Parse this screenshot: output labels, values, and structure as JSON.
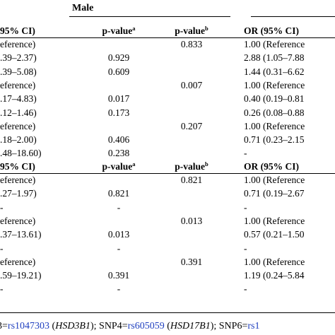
{
  "group_header": "Male",
  "sections": [
    {
      "header": {
        "or": "95% CI)",
        "p_a": "p-value",
        "p_a_sup": "a",
        "p_b": "p-value",
        "p_b_sup": "b",
        "or2": "OR (95% CI)"
      },
      "rows": [
        {
          "or": "eference)",
          "p_a": "",
          "p_b": "0.833",
          "or2": "1.00 (Reference"
        },
        {
          "or": ".39–2.37)",
          "p_a": "0.929",
          "p_b": "",
          "or2": "2.88 (1.05–7.88"
        },
        {
          "or": ".39–5.08)",
          "p_a": "0.609",
          "p_b": "",
          "or2": "1.44 (0.31–6.62"
        },
        {
          "or": "eference)",
          "p_a": "",
          "p_b": "0.007",
          "or2": "1.00 (Reference"
        },
        {
          "or": ".17–4.83)",
          "p_a": "0.017",
          "p_b": "",
          "or2": "0.40 (0.19–0.81"
        },
        {
          "or": ".12–1.46)",
          "p_a": "0.173",
          "p_b": "",
          "or2": "0.26 (0.08–0.88"
        },
        {
          "or": "eference)",
          "p_a": "",
          "p_b": "0.207",
          "or2": "1.00 (Reference"
        },
        {
          "or": ".18–2.00)",
          "p_a": "0.406",
          "p_b": "",
          "or2": "0.71 (0.23–2.15"
        },
        {
          "or": ".48–18.60)",
          "p_a": "0.238",
          "p_b": "",
          "or2": "-"
        }
      ]
    },
    {
      "header": {
        "or": "95% CI)",
        "p_a": "p-value",
        "p_a_sup": "a",
        "p_b": "p-value",
        "p_b_sup": "b",
        "or2": "OR (95% CI)"
      },
      "rows": [
        {
          "or": "eference)",
          "p_a": "",
          "p_b": "0.821",
          "or2": "1.00 (Reference"
        },
        {
          "or": ".27–1.97)",
          "p_a": "0.821",
          "p_b": "",
          "or2": "0.71 (0.19–2.67"
        },
        {
          "or": "-",
          "p_a": "-",
          "p_b": "",
          "or2": "-"
        },
        {
          "or": "eference)",
          "p_a": "",
          "p_b": "0.013",
          "or2": "1.00 (Reference"
        },
        {
          "or": ".37–13.61)",
          "p_a": "0.013",
          "p_b": "",
          "or2": "0.57 (0.21–1.50"
        },
        {
          "or": "-",
          "p_a": "-",
          "p_b": "",
          "or2": "-"
        },
        {
          "or": "eference)",
          "p_a": "",
          "p_b": "0.391",
          "or2": "1.00 (Reference"
        },
        {
          "or": ".59–19.21)",
          "p_a": "0.391",
          "p_b": "",
          "or2": "1.19 (0.24–5.84"
        },
        {
          "or": "-",
          "p_a": "-",
          "p_b": "",
          "or2": "-"
        }
      ]
    }
  ],
  "footnote": {
    "part1": "3=",
    "link1": "rs1047303",
    "gene1": "HSD3B1",
    "part2": "); SNP4=",
    "link2": "rs605059",
    "gene2": "HSD17B1",
    "part3": "); SNP6=",
    "link3": "rs1"
  }
}
